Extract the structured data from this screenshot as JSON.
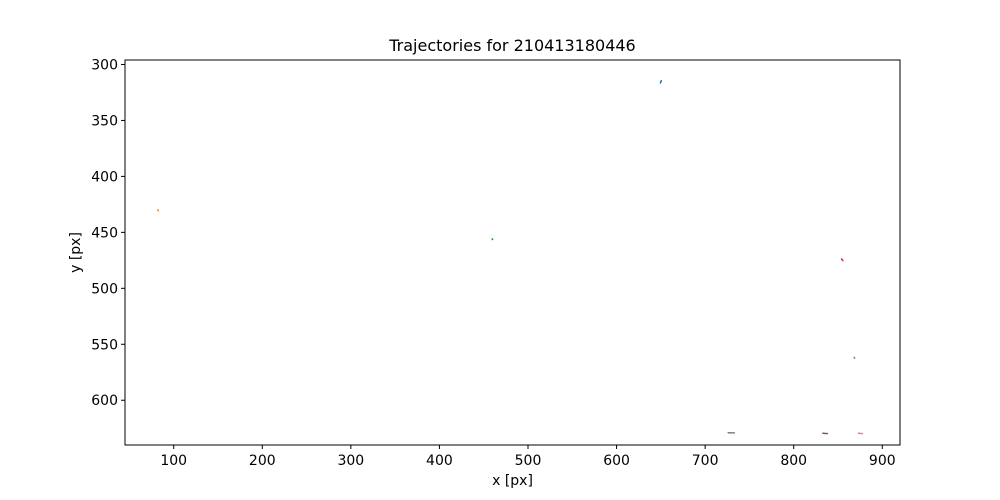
{
  "chart_data": {
    "type": "line",
    "title": "Trajectories for 210413180446",
    "xlabel": "x [px]",
    "ylabel": "y [px]",
    "xlim": [
      45,
      920
    ],
    "ylim": [
      296,
      640
    ],
    "y_inverted": true,
    "grid": false,
    "legend": "none",
    "x_ticks": [
      100,
      200,
      300,
      400,
      500,
      600,
      700,
      800,
      900
    ],
    "y_ticks": [
      300,
      350,
      400,
      450,
      500,
      550,
      600
    ],
    "series": [
      {
        "color": "#1f77b4",
        "x": [
          649.5,
          650.5
        ],
        "y": [
          316.5,
          314.5
        ]
      },
      {
        "color": "#ff7f0e",
        "x": [
          82.0,
          82.6
        ],
        "y": [
          430.0,
          430.6
        ]
      },
      {
        "color": "#2ca02c",
        "x": [
          459.5,
          460.1
        ],
        "y": [
          455.8,
          456.4
        ]
      },
      {
        "color": "#d62728",
        "x": [
          854.0,
          855.5
        ],
        "y": [
          473.8,
          475.2
        ]
      },
      {
        "color": "#9467bd",
        "x": [
          868.2,
          868.8
        ],
        "y": [
          561.8,
          562.3
        ]
      },
      {
        "color": "#8c564b",
        "x": [
          833.0,
          838.0
        ],
        "y": [
          629.5,
          629.8
        ]
      },
      {
        "color": "#e377c2",
        "x": [
          873.0,
          877.5
        ],
        "y": [
          629.5,
          629.8
        ]
      },
      {
        "color": "#7f7f7f",
        "x": [
          726.0,
          733.0
        ],
        "y": [
          629.0,
          629.2
        ]
      }
    ]
  }
}
